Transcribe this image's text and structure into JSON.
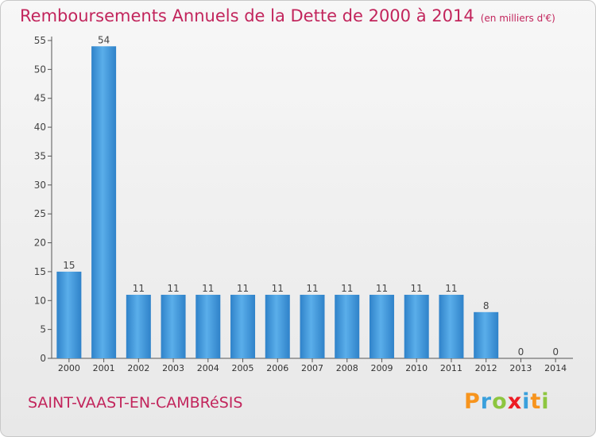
{
  "chart_data": {
    "type": "bar",
    "title": "Remboursements Annuels de la Dette de 2000 à 2014",
    "subtitle": "(en milliers d'€)",
    "categories": [
      "2000",
      "2001",
      "2002",
      "2003",
      "2004",
      "2005",
      "2006",
      "2007",
      "2008",
      "2009",
      "2010",
      "2011",
      "2012",
      "2013",
      "2014"
    ],
    "values": [
      15,
      54,
      11,
      11,
      11,
      11,
      11,
      11,
      11,
      11,
      11,
      11,
      8,
      0,
      0
    ],
    "ylim": [
      0,
      55
    ],
    "yticks": [
      0,
      5,
      10,
      15,
      20,
      25,
      30,
      35,
      40,
      45,
      50,
      55
    ],
    "grid": false,
    "bar_color": "#3d96db"
  },
  "commune": "SAINT-VAAST-EN-CAMBRéSIS",
  "logo": {
    "letters": [
      "P",
      "r",
      "o",
      "x",
      "i",
      "t",
      "i"
    ],
    "colors": [
      "#f7941d",
      "#3aa0dc",
      "#8dc63f",
      "#ed1c24",
      "#3aa0dc",
      "#f7941d",
      "#8dc63f"
    ]
  }
}
